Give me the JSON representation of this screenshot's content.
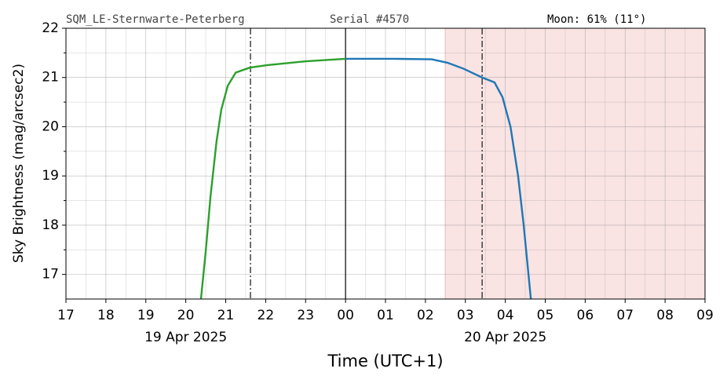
{
  "chart_data": {
    "type": "line",
    "header": [
      "SQM_LE-Sternwarte-Peterberg",
      "Serial #4570",
      "Moon: 61% (11°)"
    ],
    "ylabel": "Sky Brightness (mag/arcsec2)",
    "xlabel": "Time (UTC+1)",
    "xlim": [
      17,
      33
    ],
    "ylim": [
      16.5,
      22
    ],
    "xticks": [
      17,
      18,
      19,
      20,
      21,
      22,
      23,
      {
        "value": 24,
        "label": "00"
      },
      {
        "value": 25,
        "label": "01"
      },
      {
        "value": 26,
        "label": "02"
      },
      {
        "value": 27,
        "label": "03"
      },
      {
        "value": 28,
        "label": "04"
      },
      {
        "value": 29,
        "label": "05"
      },
      {
        "value": 30,
        "label": "06"
      },
      {
        "value": 31,
        "label": "07"
      },
      {
        "value": 32,
        "label": "08"
      },
      {
        "value": 33,
        "label": "09"
      }
    ],
    "yticks": [
      17,
      18,
      19,
      20,
      21,
      22
    ],
    "date_labels": [
      {
        "value": 20,
        "label": "19 Apr 2025"
      },
      {
        "value": 28,
        "label": "20 Apr 2025"
      }
    ],
    "grid": true,
    "shade_span": [
      26.47,
      33
    ],
    "shade_color": "#f9e3e3",
    "twilight_lines": [
      21.62,
      27.42
    ],
    "midnight_line": 24,
    "series": [
      {
        "color": "#2ca02c",
        "x": [
          20.38,
          20.5,
          20.62,
          20.77,
          20.89,
          21.05,
          21.25,
          21.6,
          22.03,
          23.01,
          24.0
        ],
        "values": [
          16.5,
          17.47,
          18.59,
          19.7,
          20.35,
          20.83,
          21.1,
          21.2,
          21.25,
          21.33,
          21.38
        ]
      },
      {
        "color": "#1f77b4",
        "x": [
          24.0,
          25.18,
          26.16,
          26.55,
          26.95,
          27.42,
          27.73,
          27.93,
          28.13,
          28.32,
          28.46,
          28.58,
          28.64
        ],
        "values": [
          21.38,
          21.38,
          21.37,
          21.3,
          21.18,
          21.0,
          20.9,
          20.6,
          20.0,
          19.0,
          18.0,
          17.0,
          16.5
        ]
      }
    ]
  }
}
